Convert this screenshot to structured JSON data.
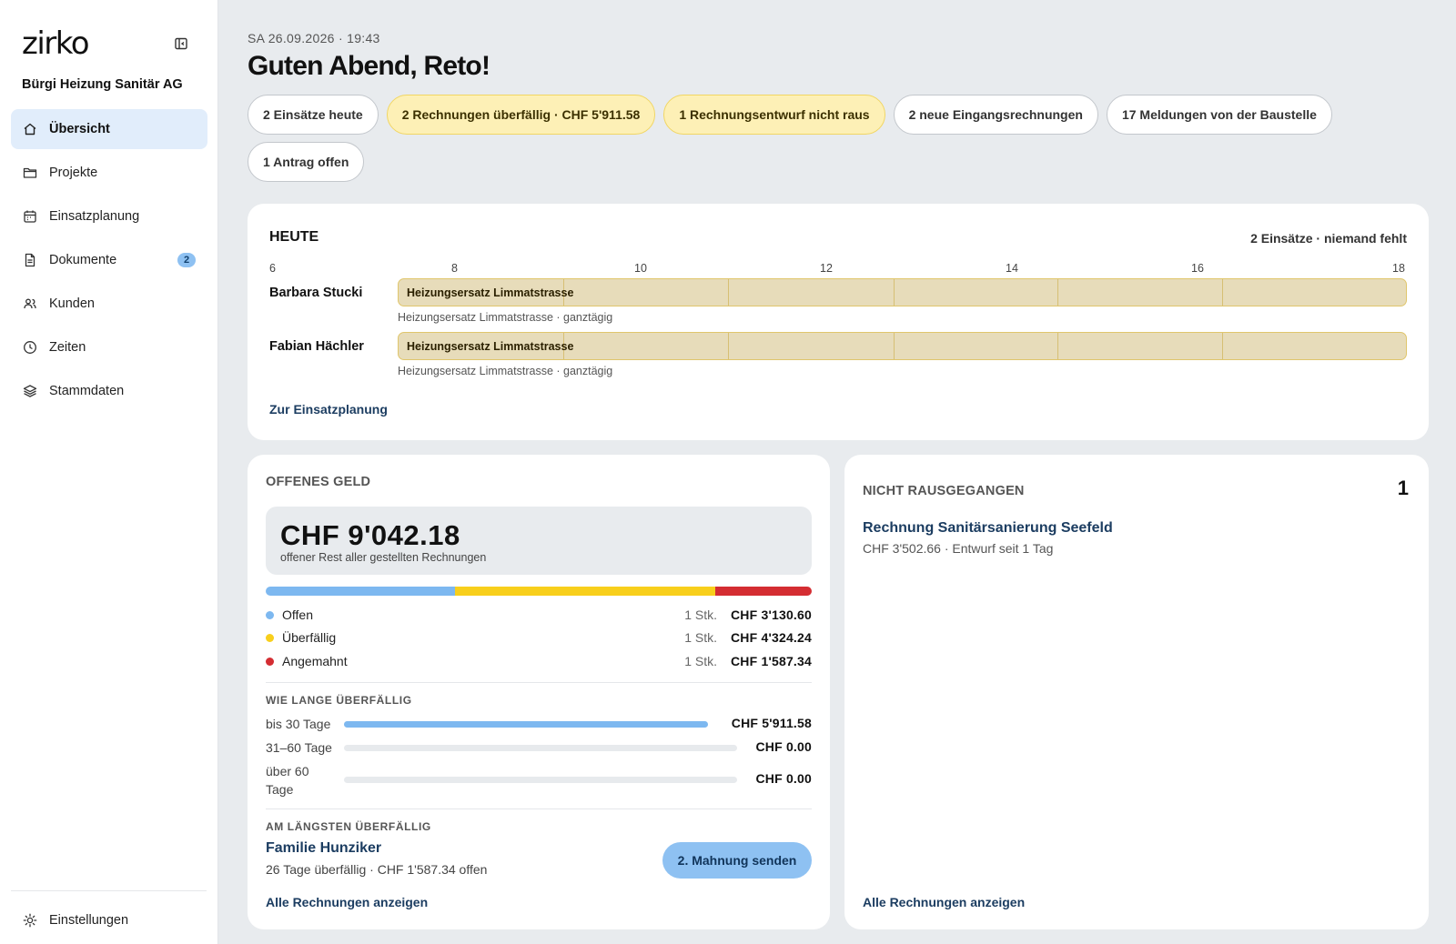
{
  "app": {
    "logo": "zirko",
    "company": "Bürgi Heizung Sanitär AG"
  },
  "sidebar": {
    "items": [
      {
        "label": "Übersicht",
        "icon": "home-icon",
        "active": true
      },
      {
        "label": "Projekte",
        "icon": "folder-icon"
      },
      {
        "label": "Einsatzplanung",
        "icon": "calendar-icon"
      },
      {
        "label": "Dokumente",
        "icon": "document-icon",
        "badge": "2"
      },
      {
        "label": "Kunden",
        "icon": "users-icon"
      },
      {
        "label": "Zeiten",
        "icon": "clock-icon"
      },
      {
        "label": "Stammdaten",
        "icon": "layers-icon"
      }
    ],
    "settings_label": "Einstellungen"
  },
  "header": {
    "datetime": "SA 26.09.2026 · 19:43",
    "greeting": "Guten Abend, Reto!"
  },
  "chips": [
    {
      "label": "2 Einsätze heute",
      "variant": "neutral"
    },
    {
      "label": "2 Rechnungen überfällig · CHF 5'911.58",
      "variant": "warning"
    },
    {
      "label": "1 Rechnungsentwurf nicht raus",
      "variant": "warning"
    },
    {
      "label": "2 neue Eingangsrechnungen",
      "variant": "neutral"
    },
    {
      "label": "17 Meldungen von der Baustelle",
      "variant": "neutral"
    },
    {
      "label": "1 Antrag offen",
      "variant": "neutral"
    }
  ],
  "heute": {
    "title": "HEUTE",
    "summary": "2 Einsätze · niemand fehlt",
    "hours": [
      "6",
      "8",
      "10",
      "12",
      "14",
      "16",
      "18"
    ],
    "lanes": [
      {
        "name": "Barbara Stucki",
        "bar_label": "Heizungsersatz Limmatstrasse",
        "sub": "Heizungsersatz Limmatstrasse · ganztägig"
      },
      {
        "name": "Fabian Hächler",
        "bar_label": "Heizungsersatz Limmatstrasse",
        "sub": "Heizungsersatz Limmatstrasse · ganztägig"
      }
    ],
    "link": "Zur Einsatzplanung"
  },
  "geld": {
    "title": "OFFENES GELD",
    "total": "CHF 9'042.18",
    "total_sub": "offener Rest aller gestellten Rechnungen",
    "colors": {
      "offen": "#7db8f0",
      "ueberfaellig": "#f8cf1c",
      "angemahnt": "#d42d32"
    },
    "legend": [
      {
        "label": "Offen",
        "count": "1 Stk.",
        "amount": "CHF 3'130.60",
        "share": 0.346
      },
      {
        "label": "Überfällig",
        "count": "1 Stk.",
        "amount": "CHF 4'324.24",
        "share": 0.478
      },
      {
        "label": "Angemahnt",
        "count": "1 Stk.",
        "amount": "CHF 1'587.34",
        "share": 0.176
      }
    ],
    "age_title": "WIE LANGE ÜBERFÄLLIG",
    "ages": [
      {
        "label": "bis 30 Tage",
        "amount": "CHF 5'911.58",
        "fraction": 1.0
      },
      {
        "label": "31–60 Tage",
        "amount": "CHF 0.00",
        "fraction": 0
      },
      {
        "label": "über 60 Tage",
        "amount": "CHF 0.00",
        "fraction": 0
      }
    ],
    "longest_title": "AM LÄNGSTEN ÜBERFÄLLIG",
    "longest_customer": "Familie Hunziker",
    "longest_sub": "26 Tage überfällig · CHF 1'587.34 offen",
    "mahnung_button": "2. Mahnung senden",
    "link": "Alle Rechnungen anzeigen"
  },
  "nicht": {
    "title": "NICHT RAUSGEGANGEN",
    "count": "1",
    "invoice_title": "Rechnung Sanitärsanierung Seefeld",
    "invoice_sub": "CHF 3'502.66 · Entwurf seit 1 Tag",
    "link": "Alle Rechnungen anzeigen"
  }
}
